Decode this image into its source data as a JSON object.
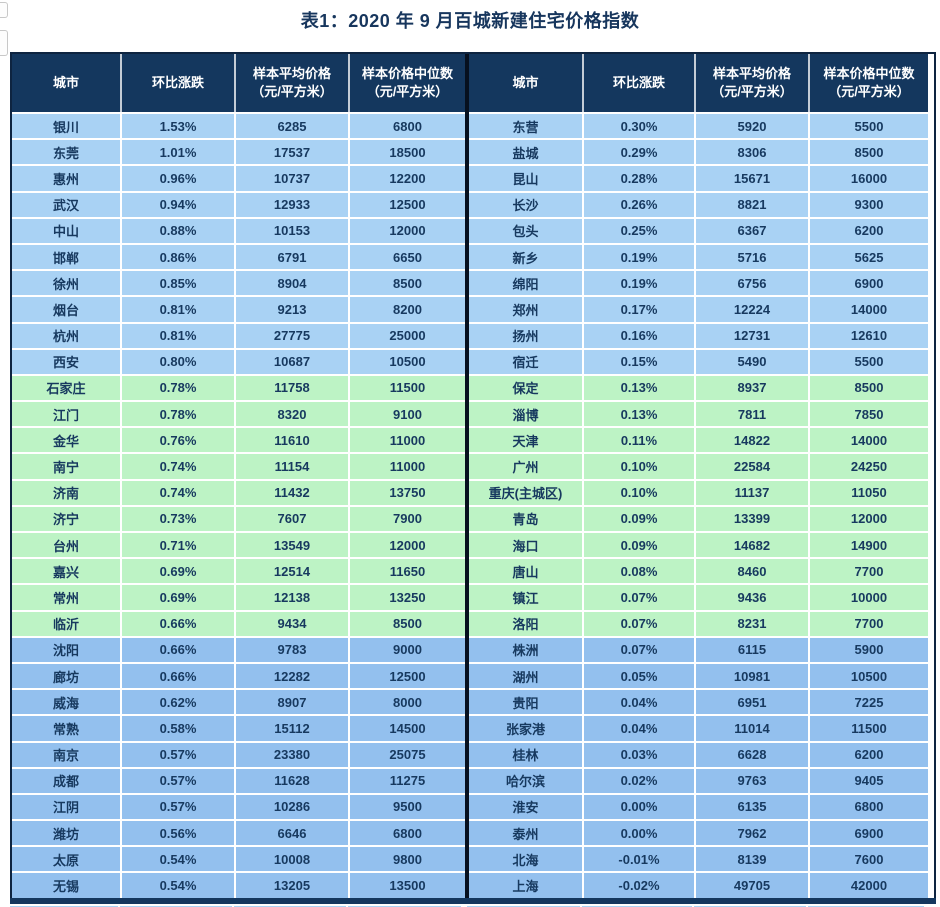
{
  "title": "表1：2020 年 9 月百城新建住宅价格指数",
  "columns": [
    {
      "line1": "城市",
      "line2": ""
    },
    {
      "line1": "环比涨跌",
      "line2": ""
    },
    {
      "line1": "样本平均价格",
      "line2": "（元/平方米）"
    },
    {
      "line1": "样本价格中位数",
      "line2": "（元/平方米）"
    }
  ],
  "colors": {
    "header_bg": "#14375e",
    "header_text": "#ffffff",
    "row_blue_light": "#a9d2f4",
    "row_green": "#bdf3c5",
    "row_blue_dark": "#93c0ee",
    "cell_text": "#17395f",
    "outer_border": "#0e2440",
    "center_divider": "#06101f",
    "title_text": "#17365d"
  },
  "left_rows": [
    {
      "city": "银川",
      "change": "1.53%",
      "avg": "6285",
      "median": "6800"
    },
    {
      "city": "东莞",
      "change": "1.01%",
      "avg": "17537",
      "median": "18500"
    },
    {
      "city": "惠州",
      "change": "0.96%",
      "avg": "10737",
      "median": "12200"
    },
    {
      "city": "武汉",
      "change": "0.94%",
      "avg": "12933",
      "median": "12500"
    },
    {
      "city": "中山",
      "change": "0.88%",
      "avg": "10153",
      "median": "12000"
    },
    {
      "city": "邯郸",
      "change": "0.86%",
      "avg": "6791",
      "median": "6650"
    },
    {
      "city": "徐州",
      "change": "0.85%",
      "avg": "8904",
      "median": "8500"
    },
    {
      "city": "烟台",
      "change": "0.81%",
      "avg": "9213",
      "median": "8200"
    },
    {
      "city": "杭州",
      "change": "0.81%",
      "avg": "27775",
      "median": "25000"
    },
    {
      "city": "西安",
      "change": "0.80%",
      "avg": "10687",
      "median": "10500"
    },
    {
      "city": "石家庄",
      "change": "0.78%",
      "avg": "11758",
      "median": "11500"
    },
    {
      "city": "江门",
      "change": "0.78%",
      "avg": "8320",
      "median": "9100"
    },
    {
      "city": "金华",
      "change": "0.76%",
      "avg": "11610",
      "median": "11000"
    },
    {
      "city": "南宁",
      "change": "0.74%",
      "avg": "11154",
      "median": "11000"
    },
    {
      "city": "济南",
      "change": "0.74%",
      "avg": "11432",
      "median": "13750"
    },
    {
      "city": "济宁",
      "change": "0.73%",
      "avg": "7607",
      "median": "7900"
    },
    {
      "city": "台州",
      "change": "0.71%",
      "avg": "13549",
      "median": "12000"
    },
    {
      "city": "嘉兴",
      "change": "0.69%",
      "avg": "12514",
      "median": "11650"
    },
    {
      "city": "常州",
      "change": "0.69%",
      "avg": "12138",
      "median": "13250"
    },
    {
      "city": "临沂",
      "change": "0.66%",
      "avg": "9434",
      "median": "8500"
    },
    {
      "city": "沈阳",
      "change": "0.66%",
      "avg": "9783",
      "median": "9000"
    },
    {
      "city": "廊坊",
      "change": "0.66%",
      "avg": "12282",
      "median": "12500"
    },
    {
      "city": "威海",
      "change": "0.62%",
      "avg": "8907",
      "median": "8000"
    },
    {
      "city": "常熟",
      "change": "0.58%",
      "avg": "15112",
      "median": "14500"
    },
    {
      "city": "南京",
      "change": "0.57%",
      "avg": "23380",
      "median": "25075"
    },
    {
      "city": "成都",
      "change": "0.57%",
      "avg": "11628",
      "median": "11275"
    },
    {
      "city": "江阴",
      "change": "0.57%",
      "avg": "10286",
      "median": "9500"
    },
    {
      "city": "潍坊",
      "change": "0.56%",
      "avg": "6646",
      "median": "6800"
    },
    {
      "city": "太原",
      "change": "0.54%",
      "avg": "10008",
      "median": "9800"
    },
    {
      "city": "无锡",
      "change": "0.54%",
      "avg": "13205",
      "median": "13500"
    }
  ],
  "right_rows": [
    {
      "city": "东营",
      "change": "0.30%",
      "avg": "5920",
      "median": "5500"
    },
    {
      "city": "盐城",
      "change": "0.29%",
      "avg": "8306",
      "median": "8500"
    },
    {
      "city": "昆山",
      "change": "0.28%",
      "avg": "15671",
      "median": "16000"
    },
    {
      "city": "长沙",
      "change": "0.26%",
      "avg": "8821",
      "median": "9300"
    },
    {
      "city": "包头",
      "change": "0.25%",
      "avg": "6367",
      "median": "6200"
    },
    {
      "city": "新乡",
      "change": "0.19%",
      "avg": "5716",
      "median": "5625"
    },
    {
      "city": "绵阳",
      "change": "0.19%",
      "avg": "6756",
      "median": "6900"
    },
    {
      "city": "郑州",
      "change": "0.17%",
      "avg": "12224",
      "median": "14000"
    },
    {
      "city": "扬州",
      "change": "0.16%",
      "avg": "12731",
      "median": "12610"
    },
    {
      "city": "宿迁",
      "change": "0.15%",
      "avg": "5490",
      "median": "5500"
    },
    {
      "city": "保定",
      "change": "0.13%",
      "avg": "8937",
      "median": "8500"
    },
    {
      "city": "淄博",
      "change": "0.13%",
      "avg": "7811",
      "median": "7850"
    },
    {
      "city": "天津",
      "change": "0.11%",
      "avg": "14822",
      "median": "14000"
    },
    {
      "city": "广州",
      "change": "0.10%",
      "avg": "22584",
      "median": "24250"
    },
    {
      "city": "重庆(主城区)",
      "change": "0.10%",
      "avg": "11137",
      "median": "11050"
    },
    {
      "city": "青岛",
      "change": "0.09%",
      "avg": "13399",
      "median": "12000"
    },
    {
      "city": "海口",
      "change": "0.09%",
      "avg": "14682",
      "median": "14900"
    },
    {
      "city": "唐山",
      "change": "0.08%",
      "avg": "8460",
      "median": "7700"
    },
    {
      "city": "镇江",
      "change": "0.07%",
      "avg": "9436",
      "median": "10000"
    },
    {
      "city": "洛阳",
      "change": "0.07%",
      "avg": "8231",
      "median": "7700"
    },
    {
      "city": "株洲",
      "change": "0.07%",
      "avg": "6115",
      "median": "5900"
    },
    {
      "city": "湖州",
      "change": "0.05%",
      "avg": "10981",
      "median": "10500"
    },
    {
      "city": "贵阳",
      "change": "0.04%",
      "avg": "6951",
      "median": "7225"
    },
    {
      "city": "张家港",
      "change": "0.04%",
      "avg": "11014",
      "median": "11500"
    },
    {
      "city": "桂林",
      "change": "0.03%",
      "avg": "6628",
      "median": "6200"
    },
    {
      "city": "哈尔滨",
      "change": "0.02%",
      "avg": "9763",
      "median": "9405"
    },
    {
      "city": "淮安",
      "change": "0.00%",
      "avg": "6135",
      "median": "6800"
    },
    {
      "city": "泰州",
      "change": "0.00%",
      "avg": "7962",
      "median": "6900"
    },
    {
      "city": "北海",
      "change": "-0.01%",
      "avg": "8139",
      "median": "7600"
    },
    {
      "city": "上海",
      "change": "-0.02%",
      "avg": "49705",
      "median": "42000"
    }
  ]
}
